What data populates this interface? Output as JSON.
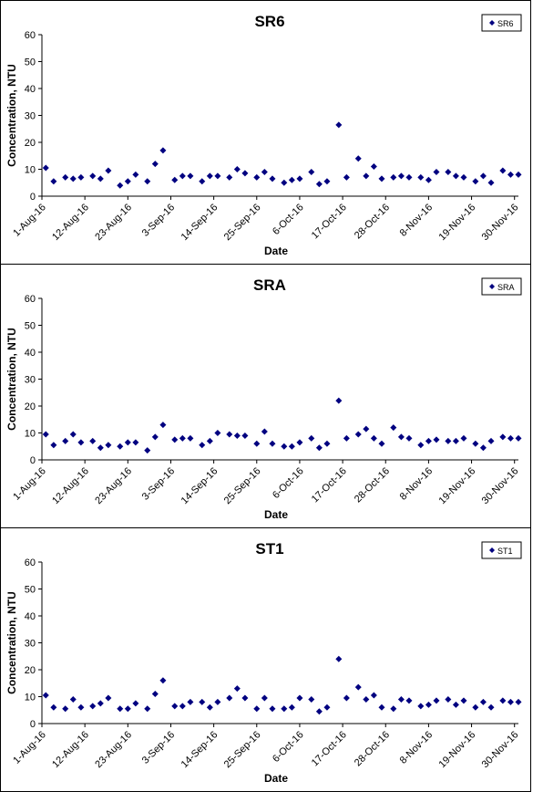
{
  "chart_data": [
    {
      "type": "scatter",
      "title": "SR6",
      "xlabel": "Date",
      "ylabel": "Concentration, NTU",
      "ylim": [
        0,
        60
      ],
      "yticks": [
        "0",
        "10",
        "20",
        "30",
        "40",
        "50",
        "60"
      ],
      "xrange": [
        "2016-08-01",
        "2016-12-01"
      ],
      "xticks": [
        "1-Aug-16",
        "12-Aug-16",
        "23-Aug-16",
        "3-Sep-16",
        "14-Sep-16",
        "25-Sep-16",
        "6-Oct-16",
        "17-Oct-16",
        "28-Oct-16",
        "8-Nov-16",
        "19-Nov-16",
        "30-Nov-16"
      ],
      "legend": "top-right",
      "grid": false,
      "color": "#000080",
      "series": [
        {
          "name": "SR6",
          "x": [
            "2016-08-02",
            "2016-08-04",
            "2016-08-07",
            "2016-08-09",
            "2016-08-11",
            "2016-08-14",
            "2016-08-16",
            "2016-08-18",
            "2016-08-21",
            "2016-08-23",
            "2016-08-25",
            "2016-08-28",
            "2016-08-30",
            "2016-09-01",
            "2016-09-04",
            "2016-09-06",
            "2016-09-08",
            "2016-09-11",
            "2016-09-13",
            "2016-09-15",
            "2016-09-18",
            "2016-09-20",
            "2016-09-22",
            "2016-09-25",
            "2016-09-27",
            "2016-09-29",
            "2016-10-02",
            "2016-10-04",
            "2016-10-06",
            "2016-10-09",
            "2016-10-11",
            "2016-10-13",
            "2016-10-16",
            "2016-10-18",
            "2016-10-21",
            "2016-10-23",
            "2016-10-25",
            "2016-10-27",
            "2016-10-30",
            "2016-11-01",
            "2016-11-03",
            "2016-11-06",
            "2016-11-08",
            "2016-11-10",
            "2016-11-13",
            "2016-11-15",
            "2016-11-17",
            "2016-11-20",
            "2016-11-22",
            "2016-11-24",
            "2016-11-27",
            "2016-11-29",
            "2016-12-01"
          ],
          "y": [
            10.5,
            5.5,
            7,
            6.5,
            7,
            7.5,
            6.5,
            9.5,
            4,
            5.5,
            8,
            5.5,
            12,
            17,
            6,
            7.5,
            7.5,
            5.5,
            7.5,
            7.5,
            7,
            10,
            8.5,
            7,
            9,
            6.5,
            5,
            6,
            6.5,
            9,
            4.5,
            5.5,
            26.5,
            7,
            14,
            7.5,
            11,
            6.5,
            7,
            7.5,
            7,
            7,
            6,
            9,
            9,
            7.5,
            7,
            5.5,
            7.5,
            5,
            9.5,
            8,
            8
          ]
        }
      ]
    },
    {
      "type": "scatter",
      "title": "SRA",
      "xlabel": "Date",
      "ylabel": "Concentration, NTU",
      "ylim": [
        0,
        60
      ],
      "yticks": [
        "0",
        "10",
        "20",
        "30",
        "40",
        "50",
        "60"
      ],
      "xrange": [
        "2016-08-01",
        "2016-12-01"
      ],
      "xticks": [
        "1-Aug-16",
        "12-Aug-16",
        "23-Aug-16",
        "3-Sep-16",
        "14-Sep-16",
        "25-Sep-16",
        "6-Oct-16",
        "17-Oct-16",
        "28-Oct-16",
        "8-Nov-16",
        "19-Nov-16",
        "30-Nov-16"
      ],
      "legend": "top-right",
      "grid": false,
      "color": "#000080",
      "series": [
        {
          "name": "SRA",
          "x": [
            "2016-08-02",
            "2016-08-04",
            "2016-08-07",
            "2016-08-09",
            "2016-08-11",
            "2016-08-14",
            "2016-08-16",
            "2016-08-18",
            "2016-08-21",
            "2016-08-23",
            "2016-08-25",
            "2016-08-28",
            "2016-08-30",
            "2016-09-01",
            "2016-09-04",
            "2016-09-06",
            "2016-09-08",
            "2016-09-11",
            "2016-09-13",
            "2016-09-15",
            "2016-09-18",
            "2016-09-20",
            "2016-09-22",
            "2016-09-25",
            "2016-09-27",
            "2016-09-29",
            "2016-10-02",
            "2016-10-04",
            "2016-10-06",
            "2016-10-09",
            "2016-10-11",
            "2016-10-13",
            "2016-10-16",
            "2016-10-18",
            "2016-10-21",
            "2016-10-23",
            "2016-10-25",
            "2016-10-27",
            "2016-10-30",
            "2016-11-01",
            "2016-11-03",
            "2016-11-06",
            "2016-11-08",
            "2016-11-10",
            "2016-11-13",
            "2016-11-15",
            "2016-11-17",
            "2016-11-20",
            "2016-11-22",
            "2016-11-24",
            "2016-11-27",
            "2016-11-29",
            "2016-12-01"
          ],
          "y": [
            9.5,
            5.5,
            7,
            9.5,
            6.5,
            7,
            4.5,
            5.5,
            5,
            6.5,
            6.5,
            3.5,
            8.5,
            13,
            7.5,
            8,
            8,
            5.5,
            7,
            10,
            9.5,
            9,
            9,
            6,
            10.5,
            6,
            5,
            5,
            6.5,
            8,
            4.5,
            6,
            22,
            8,
            9.5,
            11.5,
            8,
            6,
            12,
            8.5,
            8,
            5.5,
            7,
            7.5,
            7,
            7,
            8,
            6,
            4.5,
            7,
            8.5,
            8,
            8
          ]
        }
      ]
    },
    {
      "type": "scatter",
      "title": "ST1",
      "xlabel": "Date",
      "ylabel": "Concentration, NTU",
      "ylim": [
        0,
        60
      ],
      "yticks": [
        "0",
        "10",
        "20",
        "30",
        "40",
        "50",
        "60"
      ],
      "xrange": [
        "2016-08-01",
        "2016-12-01"
      ],
      "xticks": [
        "1-Aug-16",
        "12-Aug-16",
        "23-Aug-16",
        "3-Sep-16",
        "14-Sep-16",
        "25-Sep-16",
        "6-Oct-16",
        "17-Oct-16",
        "28-Oct-16",
        "8-Nov-16",
        "19-Nov-16",
        "30-Nov-16"
      ],
      "legend": "top-right",
      "grid": false,
      "color": "#000080",
      "series": [
        {
          "name": "ST1",
          "x": [
            "2016-08-02",
            "2016-08-04",
            "2016-08-07",
            "2016-08-09",
            "2016-08-11",
            "2016-08-14",
            "2016-08-16",
            "2016-08-18",
            "2016-08-21",
            "2016-08-23",
            "2016-08-25",
            "2016-08-28",
            "2016-08-30",
            "2016-09-01",
            "2016-09-04",
            "2016-09-06",
            "2016-09-08",
            "2016-09-11",
            "2016-09-13",
            "2016-09-15",
            "2016-09-18",
            "2016-09-20",
            "2016-09-22",
            "2016-09-25",
            "2016-09-27",
            "2016-09-29",
            "2016-10-02",
            "2016-10-04",
            "2016-10-06",
            "2016-10-09",
            "2016-10-11",
            "2016-10-13",
            "2016-10-16",
            "2016-10-18",
            "2016-10-21",
            "2016-10-23",
            "2016-10-25",
            "2016-10-27",
            "2016-10-30",
            "2016-11-01",
            "2016-11-03",
            "2016-11-06",
            "2016-11-08",
            "2016-11-10",
            "2016-11-13",
            "2016-11-15",
            "2016-11-17",
            "2016-11-20",
            "2016-11-22",
            "2016-11-24",
            "2016-11-27",
            "2016-11-29",
            "2016-12-01"
          ],
          "y": [
            10.5,
            6,
            5.5,
            9,
            6,
            6.5,
            7.5,
            9.5,
            5.5,
            5.5,
            7.5,
            5.5,
            11,
            16,
            6.5,
            6.5,
            8,
            8,
            6,
            8,
            9.5,
            13,
            9.5,
            5.5,
            9.5,
            5.5,
            5.5,
            6,
            9.5,
            9,
            4.5,
            6,
            24,
            9.5,
            13.5,
            9,
            10.5,
            6,
            5.5,
            9,
            8.5,
            6.5,
            7,
            8.5,
            9,
            7,
            8.5,
            6,
            8,
            6,
            8.5,
            8,
            8
          ]
        }
      ]
    }
  ]
}
